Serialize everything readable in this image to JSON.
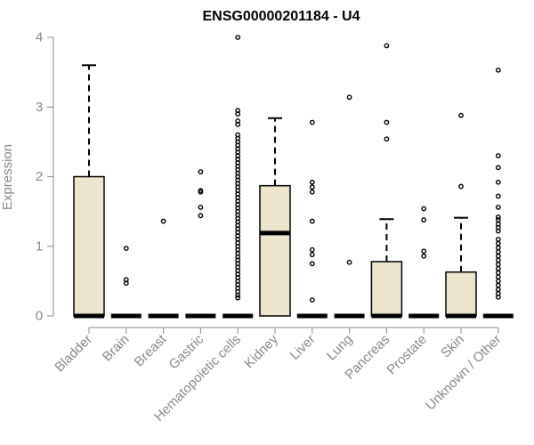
{
  "chart_data": {
    "type": "boxplot",
    "title": "ENSG00000201184 - U4",
    "xlabel": "",
    "ylabel": "Expression",
    "ylim": [
      0,
      4
    ],
    "yticks": [
      0,
      1,
      2,
      3,
      4
    ],
    "grid": false,
    "legend": "none",
    "box_color": "#ede6cc",
    "categories": [
      "Bladder",
      "Brain",
      "Breast",
      "Gastric",
      "Hematopoietic cells",
      "Kidney",
      "Liver",
      "Lung",
      "Pancreas",
      "Prostate",
      "Skin",
      "Unknown / Other"
    ],
    "boxes": [
      {
        "category": "Bladder",
        "q1": 0,
        "median": 0,
        "q3": 2.0,
        "whisker_low": 0,
        "whisker_high": 3.6,
        "outliers": []
      },
      {
        "category": "Brain",
        "q1": 0,
        "median": 0,
        "q3": 0,
        "whisker_low": 0,
        "whisker_high": 0,
        "outliers": [
          0.97,
          0.52,
          0.47
        ]
      },
      {
        "category": "Breast",
        "q1": 0,
        "median": 0,
        "q3": 0,
        "whisker_low": 0,
        "whisker_high": 0,
        "outliers": [
          1.36
        ]
      },
      {
        "category": "Gastric",
        "q1": 0,
        "median": 0,
        "q3": 0,
        "whisker_low": 0,
        "whisker_high": 0,
        "outliers": [
          2.07,
          1.8,
          1.78,
          1.56,
          1.44
        ]
      },
      {
        "category": "Hematopoietic cells",
        "q1": 0,
        "median": 0,
        "q3": 0,
        "whisker_low": 0,
        "whisker_high": 0,
        "outliers": [
          4.0,
          2.95,
          2.9,
          2.8,
          2.75,
          2.6,
          2.55,
          2.5,
          2.45,
          2.4,
          2.35,
          2.3,
          2.25,
          2.2,
          2.15,
          2.1,
          2.05,
          2.0,
          1.95,
          1.9,
          1.85,
          1.8,
          1.75,
          1.7,
          1.65,
          1.6,
          1.55,
          1.5,
          1.45,
          1.4,
          1.35,
          1.3,
          1.25,
          1.2,
          1.15,
          1.1,
          1.05,
          1.0,
          0.95,
          0.9,
          0.85,
          0.8,
          0.75,
          0.7,
          0.65,
          0.6,
          0.55,
          0.5,
          0.45,
          0.4,
          0.35,
          0.3,
          0.26
        ]
      },
      {
        "category": "Kidney",
        "q1": 0,
        "median": 1.19,
        "q3": 1.87,
        "whisker_low": 0,
        "whisker_high": 2.84,
        "outliers": []
      },
      {
        "category": "Liver",
        "q1": 0,
        "median": 0,
        "q3": 0,
        "whisker_low": 0,
        "whisker_high": 0,
        "outliers": [
          2.78,
          1.92,
          1.85,
          1.78,
          1.36,
          0.95,
          0.88,
          0.75,
          0.23
        ]
      },
      {
        "category": "Lung",
        "q1": 0,
        "median": 0,
        "q3": 0,
        "whisker_low": 0,
        "whisker_high": 0,
        "outliers": [
          3.14,
          0.77
        ]
      },
      {
        "category": "Pancreas",
        "q1": 0,
        "median": 0,
        "q3": 0.78,
        "whisker_low": 0,
        "whisker_high": 1.39,
        "outliers": [
          3.88,
          2.78,
          2.54
        ]
      },
      {
        "category": "Prostate",
        "q1": 0,
        "median": 0,
        "q3": 0,
        "whisker_low": 0,
        "whisker_high": 0,
        "outliers": [
          1.54,
          1.38,
          0.93,
          0.86
        ]
      },
      {
        "category": "Skin",
        "q1": 0,
        "median": 0,
        "q3": 0.63,
        "whisker_low": 0,
        "whisker_high": 1.41,
        "outliers": [
          2.88,
          1.86
        ]
      },
      {
        "category": "Unknown / Other",
        "q1": 0,
        "median": 0,
        "q3": 0,
        "whisker_low": 0,
        "whisker_high": 0,
        "outliers": [
          3.53,
          2.3,
          2.13,
          1.92,
          1.72,
          1.56,
          1.42,
          1.38,
          1.32,
          1.27,
          1.22,
          1.1,
          1.04,
          0.98,
          0.92,
          0.86,
          0.8,
          0.74,
          0.68,
          0.62,
          0.56,
          0.5,
          0.44,
          0.38,
          0.32,
          0.27
        ]
      }
    ]
  }
}
